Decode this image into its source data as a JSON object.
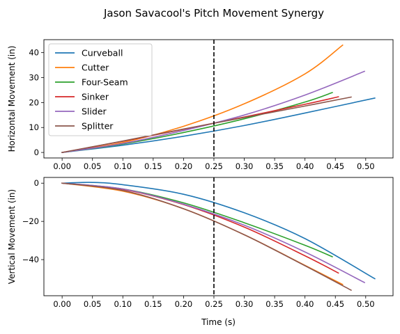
{
  "figure_title": "Jason Savacool's Pitch Movement Synergy",
  "colors": {
    "Curveball": "#1f77b4",
    "Cutter": "#ff7f0e",
    "Four-Seam": "#2ca02c",
    "Sinker": "#d62728",
    "Slider": "#9467bd",
    "Splitter": "#8c564b"
  },
  "chart_data": [
    {
      "type": "line",
      "title": "",
      "xlabel": "",
      "ylabel": "Horizontal Movement (in)",
      "xlim": [
        -0.03,
        0.545
      ],
      "ylim": [
        -2.2,
        45.2
      ],
      "xticks": [
        0.0,
        0.05,
        0.1,
        0.15,
        0.2,
        0.25,
        0.3,
        0.35,
        0.4,
        0.45,
        0.5
      ],
      "xtick_labels": [
        "0.00",
        "0.05",
        "0.10",
        "0.15",
        "0.20",
        "0.25",
        "0.30",
        "0.35",
        "0.40",
        "0.45",
        "0.50"
      ],
      "yticks": [
        0,
        10,
        20,
        30,
        40
      ],
      "ytick_labels": [
        "0",
        "10",
        "20",
        "30",
        "40"
      ],
      "grid": false,
      "legend": "upper-left",
      "vline": {
        "x": 0.25,
        "style": "dashed"
      },
      "series": [
        {
          "name": "Curveball",
          "x": [
            0,
            0.1,
            0.2,
            0.3,
            0.4,
            0.515
          ],
          "y": [
            0,
            2.9,
            6.5,
            10.8,
            15.8,
            21.8
          ]
        },
        {
          "name": "Cutter",
          "x": [
            0,
            0.1,
            0.2,
            0.3,
            0.4,
            0.462
          ],
          "y": [
            0,
            4.0,
            10.5,
            19.5,
            31.5,
            43.0
          ]
        },
        {
          "name": "Four-Seam",
          "x": [
            0,
            0.1,
            0.2,
            0.3,
            0.4,
            0.445
          ],
          "y": [
            0,
            3.4,
            8.0,
            13.5,
            20.2,
            24.0
          ]
        },
        {
          "name": "Sinker",
          "x": [
            0,
            0.1,
            0.2,
            0.3,
            0.4,
            0.455
          ],
          "y": [
            0,
            4.5,
            9.3,
            14.2,
            19.3,
            22.3
          ]
        },
        {
          "name": "Slider",
          "x": [
            0,
            0.1,
            0.2,
            0.3,
            0.4,
            0.498
          ],
          "y": [
            0,
            3.6,
            8.8,
            15.0,
            23.0,
            32.5
          ]
        },
        {
          "name": "Splitter",
          "x": [
            0,
            0.1,
            0.2,
            0.3,
            0.4,
            0.476
          ],
          "y": [
            0,
            4.6,
            9.4,
            14.0,
            18.6,
            22.2
          ]
        }
      ]
    },
    {
      "type": "line",
      "title": "",
      "xlabel": "Time (s)",
      "ylabel": "Vertical Movement (in)",
      "xlim": [
        -0.03,
        0.545
      ],
      "ylim": [
        -58.9,
        3.0
      ],
      "xticks": [
        0.0,
        0.05,
        0.1,
        0.15,
        0.2,
        0.25,
        0.3,
        0.35,
        0.4,
        0.45,
        0.5
      ],
      "xtick_labels": [
        "0.00",
        "0.05",
        "0.10",
        "0.15",
        "0.20",
        "0.25",
        "0.30",
        "0.35",
        "0.40",
        "0.45",
        "0.50"
      ],
      "yticks": [
        0,
        -20,
        -40
      ],
      "ytick_labels": [
        "0",
        "−20",
        "−40"
      ],
      "grid": false,
      "vline": {
        "x": 0.25,
        "style": "dashed"
      },
      "series": [
        {
          "name": "Curveball",
          "x": [
            0,
            0.05,
            0.1,
            0.2,
            0.3,
            0.4,
            0.515
          ],
          "y": [
            0,
            0.4,
            -0.8,
            -5.8,
            -15.5,
            -29.0,
            -50.0
          ]
        },
        {
          "name": "Cutter",
          "x": [
            0,
            0.1,
            0.2,
            0.3,
            0.4,
            0.462
          ],
          "y": [
            0,
            -4.2,
            -13.4,
            -27.0,
            -43.0,
            -53.0
          ]
        },
        {
          "name": "Four-Seam",
          "x": [
            0,
            0.1,
            0.2,
            0.3,
            0.4,
            0.445
          ],
          "y": [
            0,
            -3.0,
            -10.3,
            -20.7,
            -32.5,
            -38.5
          ]
        },
        {
          "name": "Sinker",
          "x": [
            0,
            0.1,
            0.2,
            0.3,
            0.4,
            0.455
          ],
          "y": [
            0,
            -3.2,
            -11.2,
            -23.0,
            -38.0,
            -47.0
          ]
        },
        {
          "name": "Slider",
          "x": [
            0,
            0.1,
            0.2,
            0.3,
            0.4,
            0.498
          ],
          "y": [
            0,
            -3.0,
            -11.0,
            -22.0,
            -36.0,
            -52.0
          ]
        },
        {
          "name": "Splitter",
          "x": [
            0,
            0.1,
            0.2,
            0.3,
            0.4,
            0.476
          ],
          "y": [
            0,
            -3.8,
            -13.4,
            -27.0,
            -43.2,
            -56.0
          ]
        }
      ]
    }
  ]
}
